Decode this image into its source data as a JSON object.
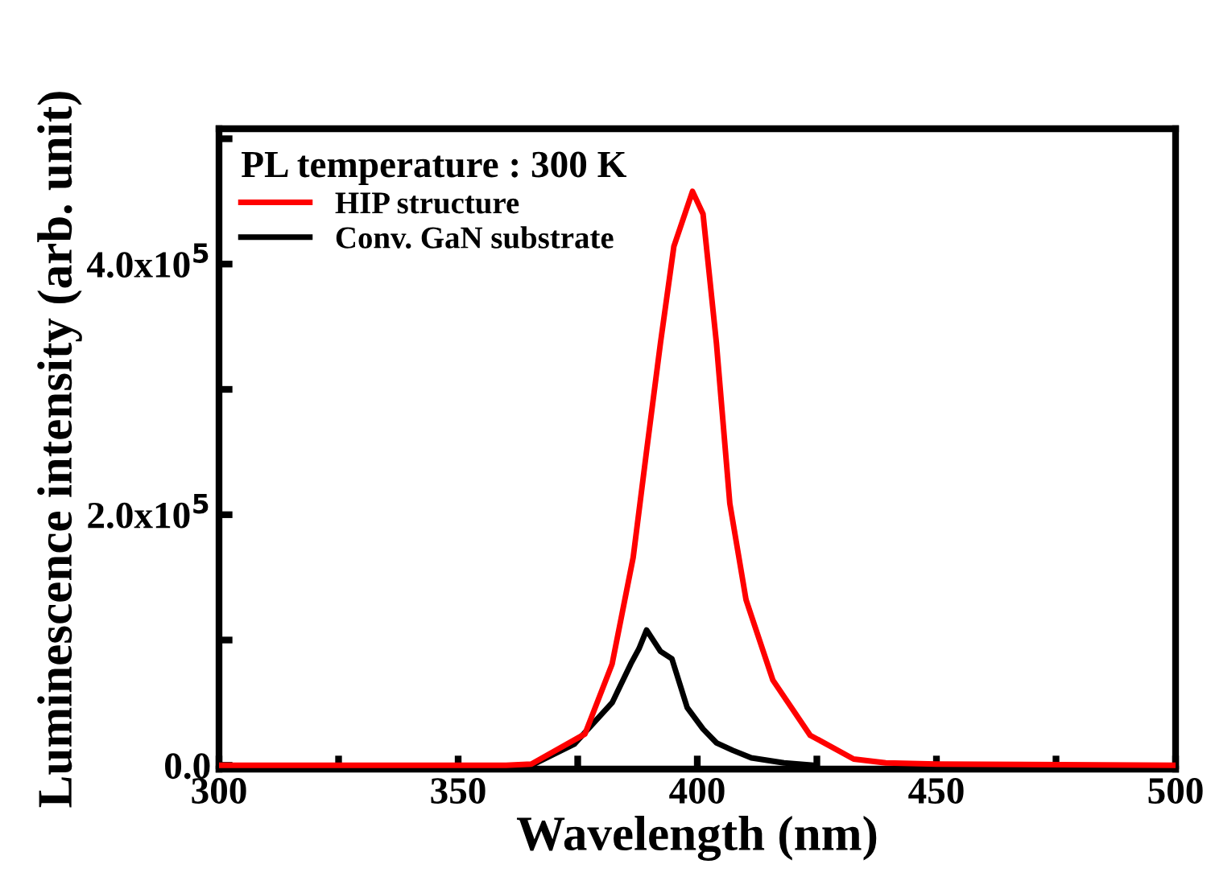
{
  "chart_data": {
    "type": "line",
    "xlabel": "Wavelength (nm)",
    "ylabel": "Luminescence intensity (arb. unit)",
    "legend_title": "PL temperature : 300 K",
    "legend": "top left",
    "grid": false,
    "marker": "none",
    "line_style": "solid",
    "xlim": [
      300,
      500
    ],
    "ylim": [
      -3000,
      508000
    ],
    "xticks": [
      300,
      {
        "value": 325,
        "label": null
      },
      350,
      {
        "value": 375,
        "label": null
      },
      400,
      {
        "value": 425,
        "label": null
      },
      450,
      {
        "value": 475,
        "label": null
      },
      500
    ],
    "yticks": [
      {
        "value": 0,
        "label": "0.0"
      },
      {
        "value": 100000,
        "label": null
      },
      {
        "value": 200000,
        "label": "2.0x10$^{5}$"
      },
      {
        "value": 300000,
        "label": null
      },
      {
        "value": 400000,
        "label": "4.0x10$^{5}$"
      },
      {
        "value": 500000,
        "label": null
      }
    ],
    "series": [
      {
        "name": "HIP structure",
        "color": "#ff0000",
        "x": [
          300,
          350,
          360,
          365.3,
          376.5,
          382.2,
          386.6,
          389.4,
          392.3,
          395.1,
          399.0,
          401.2,
          404.0,
          406.8,
          410.2,
          415.8,
          423.6,
          432.7,
          439.4,
          450,
          500
        ],
        "values": [
          0,
          0,
          0,
          1000,
          25000,
          81000,
          166000,
          251000,
          337000,
          414000,
          458000,
          440000,
          337000,
          209000,
          132000,
          68000,
          24000,
          5000,
          2000,
          1000,
          0
        ]
      },
      {
        "name": "Conv. GaN substrate",
        "color": "#000000",
        "x": [
          365.3,
          374.3,
          382.2,
          386.1,
          387.8,
          389.4,
          392.3,
          394.7,
          397.9,
          401.2,
          404.0,
          407.4,
          411.3,
          418.1,
          424.8
        ],
        "values": [
          0,
          17000,
          50000,
          81000,
          93000,
          108000,
          91000,
          85000,
          46000,
          29000,
          18000,
          12000,
          6000,
          2000,
          0
        ]
      }
    ]
  }
}
